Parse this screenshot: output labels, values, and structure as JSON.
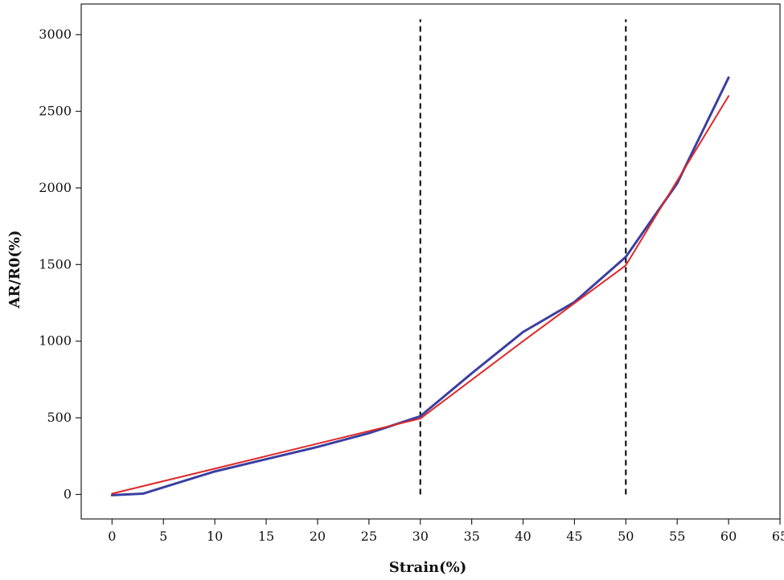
{
  "chart_data": {
    "type": "line",
    "title": "",
    "xlabel": "Strain(%)",
    "ylabel": "AR/R0(%)",
    "xlim": [
      -3,
      65
    ],
    "ylim": [
      -160,
      3200
    ],
    "x_ticks": [
      0,
      5,
      10,
      15,
      20,
      25,
      30,
      35,
      40,
      45,
      50,
      55,
      60,
      65
    ],
    "y_ticks": [
      0,
      500,
      1000,
      1500,
      2000,
      2500,
      3000
    ],
    "grid": false,
    "legend": "none",
    "vlines": [
      {
        "x": 30,
        "ymin": 0,
        "ymax": 3100,
        "style": "dashed",
        "color": "#000000"
      },
      {
        "x": 50,
        "ymin": 0,
        "ymax": 3100,
        "style": "dashed",
        "color": "#000000"
      }
    ],
    "series": [
      {
        "color": "#3a3fa0",
        "points": [
          [
            0,
            -5
          ],
          [
            3,
            5
          ],
          [
            10,
            150
          ],
          [
            15,
            230
          ],
          [
            20,
            310
          ],
          [
            25,
            400
          ],
          [
            30,
            510
          ],
          [
            35,
            790
          ],
          [
            40,
            1060
          ],
          [
            45,
            1255
          ],
          [
            50,
            1550
          ],
          [
            55,
            2030
          ],
          [
            60,
            2720
          ]
        ]
      },
      {
        "color": "#e02828",
        "points": [
          [
            0,
            5
          ],
          [
            30,
            495
          ],
          [
            40,
            1000
          ],
          [
            50,
            1495
          ],
          [
            60,
            2600
          ]
        ]
      }
    ]
  }
}
